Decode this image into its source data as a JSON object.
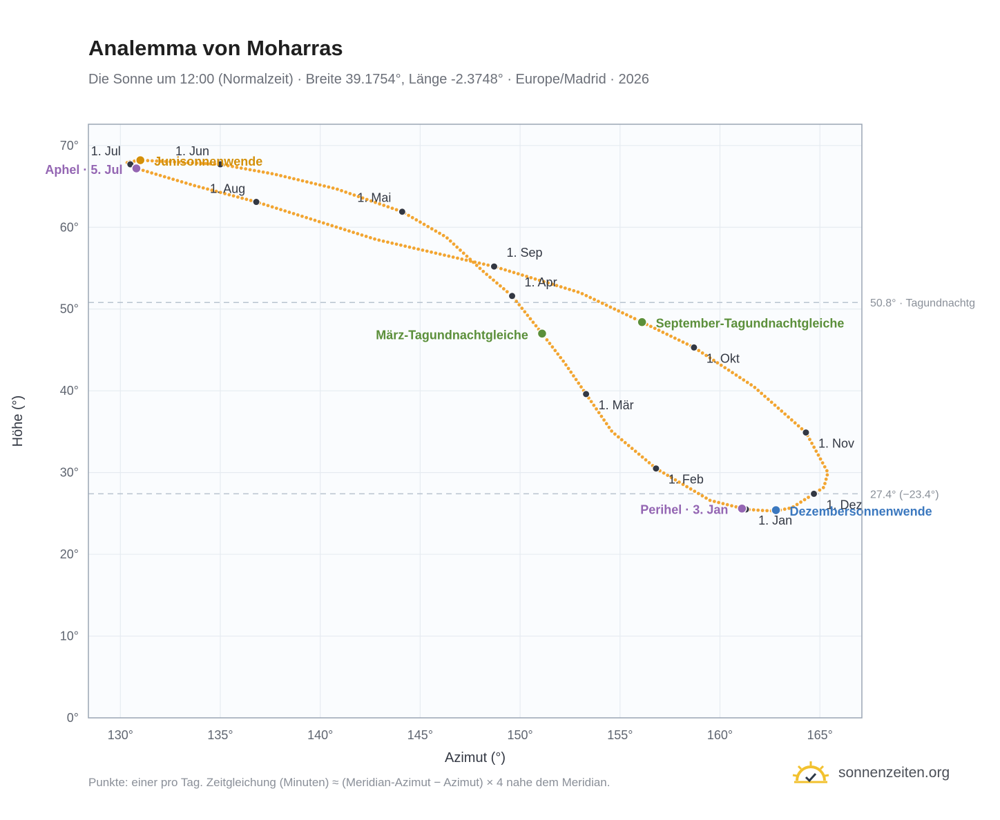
{
  "header": {
    "title": "Analemma von Moharras",
    "subtitle": "Die Sonne um 12:00 (Normalzeit) · Breite 39.1754°, Länge -2.3748° · Europe/Madrid · 2026"
  },
  "footer": {
    "note": "Punkte: einer pro Tag. Zeitgleichung (Minuten) ≈ (Meridian-Azimut − Azimut) × 4 nahe dem Meridian.",
    "brand": "sonnenzeiten.org"
  },
  "chart_data": {
    "type": "scatter",
    "xlabel": "Azimut (°)",
    "ylabel": "Höhe (°)",
    "xlim": [
      128.4,
      167.1
    ],
    "ylim": [
      0,
      72.6
    ],
    "xticks": [
      130,
      135,
      140,
      145,
      150,
      155,
      160,
      165
    ],
    "yticks": [
      0,
      10,
      20,
      30,
      40,
      50,
      60,
      70
    ],
    "x_tick_suffix": "°",
    "y_tick_suffix": "°",
    "grid": true,
    "colors": {
      "curve": "#f2a531",
      "month_marker": "#333843",
      "equinox": "#5b8f3a",
      "june_solstice": "#d4900a",
      "december_solstice": "#3b78bf",
      "apsis": "#9466b3",
      "reference_line": "#b8c3cf",
      "plot_background": "#fafcfe",
      "axis_frame": "#9aa5b4"
    },
    "reference_lines": [
      {
        "y": 50.8,
        "label": "50.8° · Tagundnachtg"
      },
      {
        "y": 27.4,
        "label": "27.4° (−23.4°)"
      }
    ],
    "path_points": [
      {
        "x": 162.8,
        "y": 25.3
      },
      {
        "x": 162.2,
        "y": 25.35
      },
      {
        "x": 161.3,
        "y": 25.5
      },
      {
        "x": 159.5,
        "y": 26.6
      },
      {
        "x": 156.8,
        "y": 30.5
      },
      {
        "x": 154.6,
        "y": 35.0
      },
      {
        "x": 153.3,
        "y": 39.6
      },
      {
        "x": 152.2,
        "y": 43.5
      },
      {
        "x": 151.1,
        "y": 47.0
      },
      {
        "x": 149.6,
        "y": 51.6
      },
      {
        "x": 148.2,
        "y": 54.5
      },
      {
        "x": 146.3,
        "y": 58.8
      },
      {
        "x": 144.1,
        "y": 61.9
      },
      {
        "x": 140.8,
        "y": 64.7
      },
      {
        "x": 137.7,
        "y": 66.5
      },
      {
        "x": 135.0,
        "y": 67.7
      },
      {
        "x": 131.0,
        "y": 68.2
      },
      {
        "x": 130.3,
        "y": 67.95
      },
      {
        "x": 130.5,
        "y": 67.7
      },
      {
        "x": 130.8,
        "y": 67.2
      },
      {
        "x": 133.7,
        "y": 65.1
      },
      {
        "x": 136.8,
        "y": 63.1
      },
      {
        "x": 142.8,
        "y": 58.5
      },
      {
        "x": 148.7,
        "y": 55.2
      },
      {
        "x": 153.0,
        "y": 52.0
      },
      {
        "x": 156.1,
        "y": 48.4
      },
      {
        "x": 158.7,
        "y": 45.3
      },
      {
        "x": 161.7,
        "y": 40.5
      },
      {
        "x": 164.3,
        "y": 34.9
      },
      {
        "x": 165.4,
        "y": 30.0
      },
      {
        "x": 165.2,
        "y": 28.2
      },
      {
        "x": 164.7,
        "y": 27.4
      },
      {
        "x": 163.6,
        "y": 25.7
      },
      {
        "x": 162.8,
        "y": 25.3
      }
    ],
    "month_markers": [
      {
        "label": "1. Jan",
        "x": 161.3,
        "y": 25.5,
        "anchor": "start",
        "dx": 18,
        "dy": 22
      },
      {
        "label": "1. Feb",
        "x": 156.8,
        "y": 30.5,
        "anchor": "start",
        "dx": 18,
        "dy": 22
      },
      {
        "label": "1. Mär",
        "x": 153.3,
        "y": 39.6,
        "anchor": "start",
        "dx": 18,
        "dy": 22
      },
      {
        "label": "1. Apr",
        "x": 149.6,
        "y": 51.6,
        "anchor": "start",
        "dx": 18,
        "dy": -14
      },
      {
        "label": "1. Mai",
        "x": 144.1,
        "y": 61.9,
        "anchor": "end",
        "dx": -16,
        "dy": -14
      },
      {
        "label": "1. Jun",
        "x": 135.0,
        "y": 67.7,
        "anchor": "end",
        "dx": -16,
        "dy": -13
      },
      {
        "label": "1. Jul",
        "x": 130.5,
        "y": 67.7,
        "anchor": "end",
        "dx": -14,
        "dy": -13
      },
      {
        "label": "1. Aug",
        "x": 136.8,
        "y": 63.1,
        "anchor": "end",
        "dx": -16,
        "dy": -13
      },
      {
        "label": "1. Sep",
        "x": 148.7,
        "y": 55.2,
        "anchor": "start",
        "dx": 18,
        "dy": -14
      },
      {
        "label": "1. Okt",
        "x": 158.7,
        "y": 45.3,
        "anchor": "start",
        "dx": 18,
        "dy": 22
      },
      {
        "label": "1. Nov",
        "x": 164.3,
        "y": 34.9,
        "anchor": "start",
        "dx": 18,
        "dy": 22
      },
      {
        "label": "1. Dez",
        "x": 164.7,
        "y": 27.4,
        "anchor": "start",
        "dx": 18,
        "dy": 22
      }
    ],
    "events": [
      {
        "label": "März-Tagundnachtgleiche",
        "x": 151.1,
        "y": 47.0,
        "kind": "equinox",
        "anchor": "end",
        "dx": -20,
        "dy": 8
      },
      {
        "label": "September-Tagundnachtgleiche",
        "x": 156.1,
        "y": 48.4,
        "kind": "equinox",
        "anchor": "start",
        "dx": 20,
        "dy": 8
      },
      {
        "label": "Junisonnenwende",
        "x": 131.0,
        "y": 68.2,
        "kind": "june_solstice",
        "anchor": "start",
        "dx": 20,
        "dy": 8
      },
      {
        "label": "Dezembersonnenwende",
        "x": 162.8,
        "y": 25.4,
        "kind": "december_solstice",
        "anchor": "start",
        "dx": 20,
        "dy": 8
      },
      {
        "label": "Aphel · 5. Jul",
        "x": 130.8,
        "y": 67.2,
        "kind": "apsis",
        "anchor": "end",
        "dx": -20,
        "dy": 8
      },
      {
        "label": "Perihel · 3. Jan",
        "x": 161.1,
        "y": 25.6,
        "kind": "apsis",
        "anchor": "end",
        "dx": -20,
        "dy": 8
      }
    ]
  }
}
